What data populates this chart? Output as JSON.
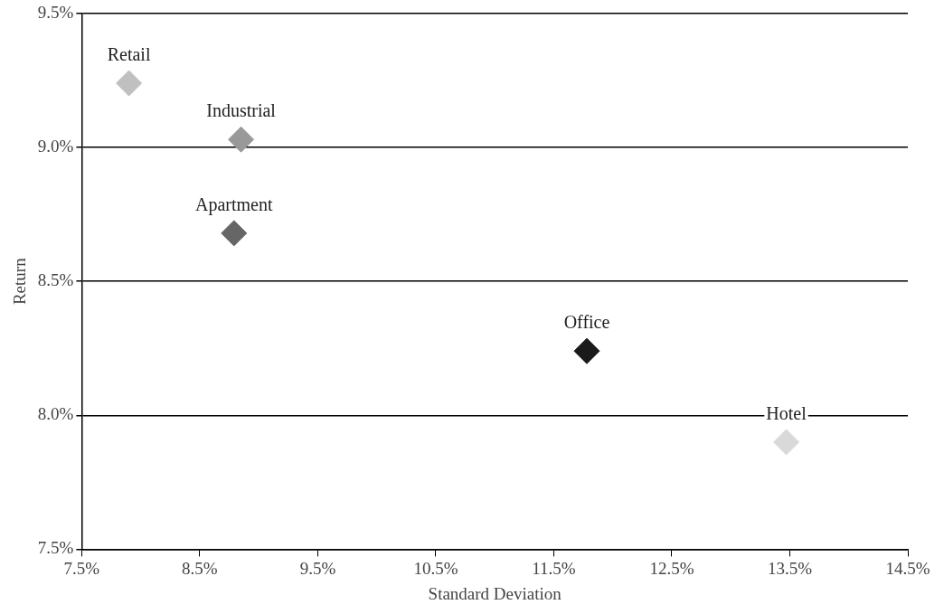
{
  "chart_data": {
    "type": "scatter",
    "xlabel": "Standard Deviation",
    "ylabel": "Return",
    "marker": "diamond",
    "grid": "y",
    "legend": false,
    "xlim": [
      7.5,
      14.5
    ],
    "ylim": [
      7.5,
      9.5
    ],
    "xticks": [
      {
        "value": 7.5,
        "label": "7.5%"
      },
      {
        "value": 8.5,
        "label": "8.5%"
      },
      {
        "value": 9.5,
        "label": "9.5%"
      },
      {
        "value": 10.5,
        "label": "10.5%"
      },
      {
        "value": 11.5,
        "label": "11.5%"
      },
      {
        "value": 12.5,
        "label": "12.5%"
      },
      {
        "value": 13.5,
        "label": "13.5%"
      },
      {
        "value": 14.5,
        "label": "14.5%"
      }
    ],
    "yticks": [
      {
        "value": 7.5,
        "label": "7.5%"
      },
      {
        "value": 8.0,
        "label": "8.0%"
      },
      {
        "value": 8.5,
        "label": "8.5%"
      },
      {
        "value": 9.0,
        "label": "9.0%"
      },
      {
        "value": 9.5,
        "label": "9.5%"
      }
    ],
    "series": [
      {
        "name": "Retail",
        "color": "#c0c0c0",
        "x": [
          7.9
        ],
        "values": [
          9.24
        ]
      },
      {
        "name": "Industrial",
        "color": "#999999",
        "x": [
          8.85
        ],
        "values": [
          9.03
        ]
      },
      {
        "name": "Apartment",
        "color": "#666666",
        "x": [
          8.79
        ],
        "values": [
          8.68
        ]
      },
      {
        "name": "Office",
        "color": "#1a1a1a",
        "x": [
          11.78
        ],
        "values": [
          8.24
        ]
      },
      {
        "name": "Hotel",
        "color": "#d9d9d9",
        "x": [
          13.47
        ],
        "values": [
          7.9
        ]
      }
    ]
  }
}
